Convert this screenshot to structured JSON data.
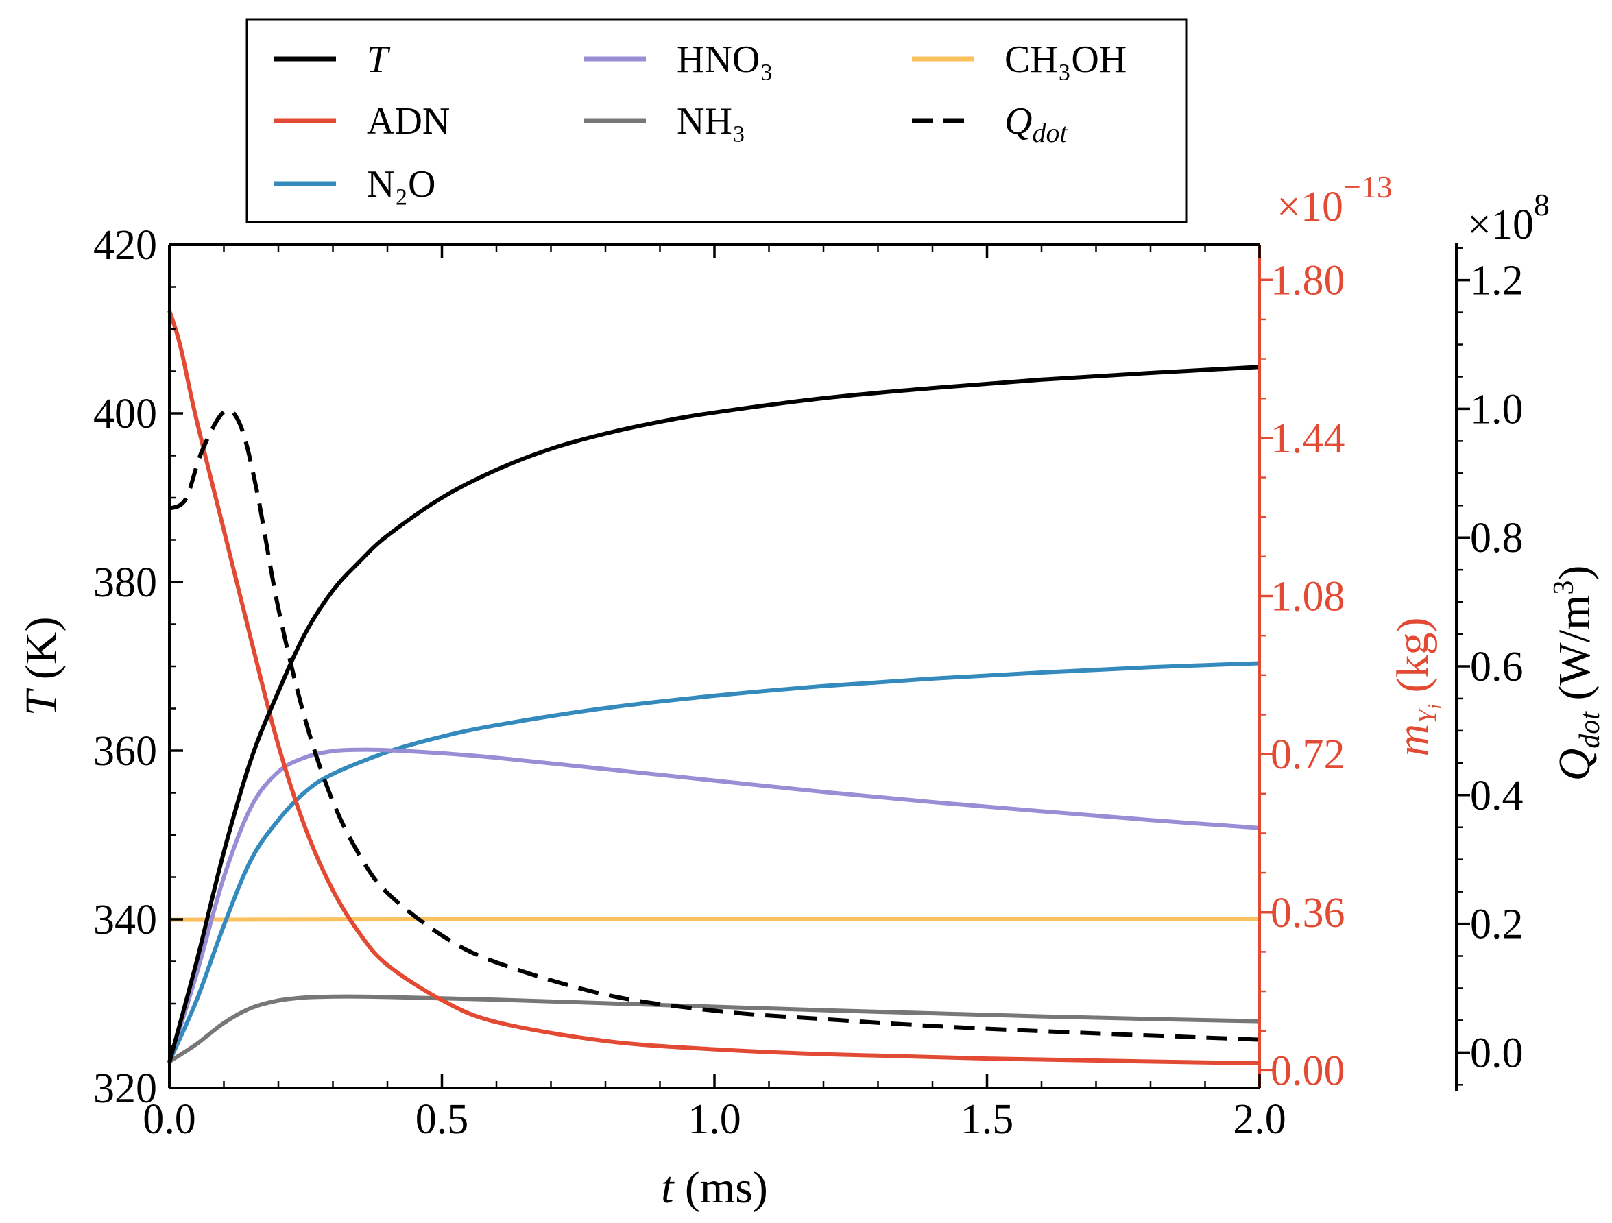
{
  "chart_data": {
    "type": "line",
    "title": "",
    "xlabel": {
      "main": "t",
      "unit": "(ms)"
    },
    "ylabel_left": {
      "main": "T",
      "unit": "(K)"
    },
    "ylabel_right1": {
      "main": "m",
      "sub": "Y",
      "subsub": "i",
      "unit": "(kg)"
    },
    "ylabel_right2": {
      "main": "Q",
      "sub": "dot",
      "unit": "(W/m",
      "sup": "3",
      "close": ")"
    },
    "right1_multiplier": {
      "base": "×10",
      "exp": "−13"
    },
    "right2_multiplier": {
      "base": "×10",
      "exp": "8"
    },
    "xlim": [
      0,
      2.0
    ],
    "ylim_left": [
      320,
      420
    ],
    "ylim_right1": [
      -0.04,
      1.88
    ],
    "ylim_right2": [
      -0.055,
      1.255
    ],
    "x_ticks": [
      "0.0",
      "0.5",
      "1.0",
      "1.5",
      "2.0"
    ],
    "left_ticks": [
      "320",
      "340",
      "360",
      "380",
      "400",
      "420"
    ],
    "right1_ticks": [
      "0.00",
      "0.36",
      "0.72",
      "1.08",
      "1.44",
      "1.80"
    ],
    "right2_ticks": [
      "0.0",
      "0.2",
      "0.4",
      "0.6",
      "0.8",
      "1.0",
      "1.2"
    ],
    "grid": false,
    "legend_position": "top (outside, above the plot)",
    "colors": {
      "T": "#000000",
      "ADN": "#e24a33",
      "N2O": "#348abd",
      "HNO3": "#988ed5",
      "NH3": "#777777",
      "CH3OH": "#fbc15e",
      "Qdot": "#000000",
      "right1_axis": "#e24a33",
      "right2_axis": "#000000"
    },
    "legend": [
      {
        "key": "T",
        "label": "T",
        "italic": true,
        "dashed": false
      },
      {
        "key": "HNO3",
        "label": "HNO₃",
        "italic": false,
        "dashed": false
      },
      {
        "key": "CH3OH",
        "label": "CH₃OH",
        "italic": false,
        "dashed": false
      },
      {
        "key": "ADN",
        "label": "ADN",
        "italic": false,
        "dashed": false
      },
      {
        "key": "NH3",
        "label": "NH₃",
        "italic": false,
        "dashed": false
      },
      {
        "key": "Qdot",
        "label": "Q",
        "label_sub": "dot",
        "italic": true,
        "dashed": true
      },
      {
        "key": "N2O",
        "label": "N₂O",
        "italic": false,
        "dashed": false
      }
    ],
    "series": [
      {
        "key": "T",
        "name": "T",
        "axis": "left",
        "x": [
          0,
          0.05,
          0.1,
          0.15,
          0.2,
          0.25,
          0.3,
          0.35,
          0.4,
          0.5,
          0.6,
          0.7,
          0.8,
          0.9,
          1.0,
          1.2,
          1.4,
          1.6,
          1.8,
          2.0
        ],
        "y": [
          323,
          335,
          348,
          359,
          367,
          374,
          379,
          382.5,
          385.5,
          390,
          393.3,
          395.8,
          397.6,
          399,
          400.1,
          401.8,
          403,
          404,
          404.8,
          405.5
        ]
      },
      {
        "key": "ADN",
        "name": "ADN",
        "axis": "right1",
        "x": [
          0,
          0.02,
          0.05,
          0.1,
          0.15,
          0.2,
          0.25,
          0.3,
          0.35,
          0.4,
          0.5,
          0.6,
          0.8,
          1.0,
          1.2,
          1.5,
          2.0
        ],
        "y": [
          1.73,
          1.65,
          1.48,
          1.23,
          0.98,
          0.74,
          0.55,
          0.41,
          0.31,
          0.24,
          0.16,
          0.11,
          0.067,
          0.048,
          0.037,
          0.027,
          0.016
        ]
      },
      {
        "key": "N2O",
        "name": "N₂O",
        "axis": "right1",
        "x": [
          0,
          0.05,
          0.1,
          0.15,
          0.2,
          0.25,
          0.3,
          0.4,
          0.5,
          0.6,
          0.8,
          1.0,
          1.2,
          1.4,
          1.6,
          1.8,
          2.0
        ],
        "y": [
          0.02,
          0.16,
          0.33,
          0.48,
          0.57,
          0.635,
          0.675,
          0.725,
          0.76,
          0.786,
          0.825,
          0.853,
          0.875,
          0.892,
          0.906,
          0.918,
          0.927
        ]
      },
      {
        "key": "HNO3",
        "name": "HNO₃",
        "axis": "right1",
        "x": [
          0,
          0.05,
          0.1,
          0.15,
          0.2,
          0.25,
          0.3,
          0.35,
          0.4,
          0.5,
          0.6,
          0.8,
          1.0,
          1.2,
          1.4,
          1.6,
          1.8,
          2.0
        ],
        "y": [
          0.02,
          0.22,
          0.44,
          0.6,
          0.68,
          0.713,
          0.727,
          0.73,
          0.729,
          0.722,
          0.712,
          0.686,
          0.66,
          0.634,
          0.611,
          0.59,
          0.57,
          0.552
        ]
      },
      {
        "key": "NH3",
        "name": "NH₃",
        "axis": "right1",
        "x": [
          0,
          0.05,
          0.1,
          0.15,
          0.2,
          0.25,
          0.3,
          0.35,
          0.4,
          0.5,
          0.6,
          0.8,
          1.0,
          1.2,
          1.4,
          1.6,
          1.8,
          2.0
        ],
        "y": [
          0.02,
          0.06,
          0.108,
          0.142,
          0.159,
          0.166,
          0.168,
          0.168,
          0.167,
          0.164,
          0.161,
          0.153,
          0.145,
          0.137,
          0.13,
          0.123,
          0.117,
          0.112
        ]
      },
      {
        "key": "CH3OH",
        "name": "CH₃OH",
        "axis": "right1",
        "x": [
          0,
          0.5,
          1.0,
          1.5,
          2.0
        ],
        "y": [
          0.343,
          0.344,
          0.344,
          0.344,
          0.344
        ]
      },
      {
        "key": "Qdot",
        "name": "Qdot",
        "axis": "right2",
        "dashed": true,
        "x": [
          0,
          0.03,
          0.06,
          0.1,
          0.13,
          0.16,
          0.2,
          0.25,
          0.3,
          0.35,
          0.4,
          0.5,
          0.6,
          0.8,
          1.0,
          1.2,
          1.5,
          2.0
        ],
        "y": [
          0.845,
          0.86,
          0.935,
          0.995,
          0.975,
          0.875,
          0.69,
          0.515,
          0.39,
          0.305,
          0.248,
          0.182,
          0.14,
          0.09,
          0.065,
          0.052,
          0.037,
          0.02
        ]
      }
    ]
  }
}
